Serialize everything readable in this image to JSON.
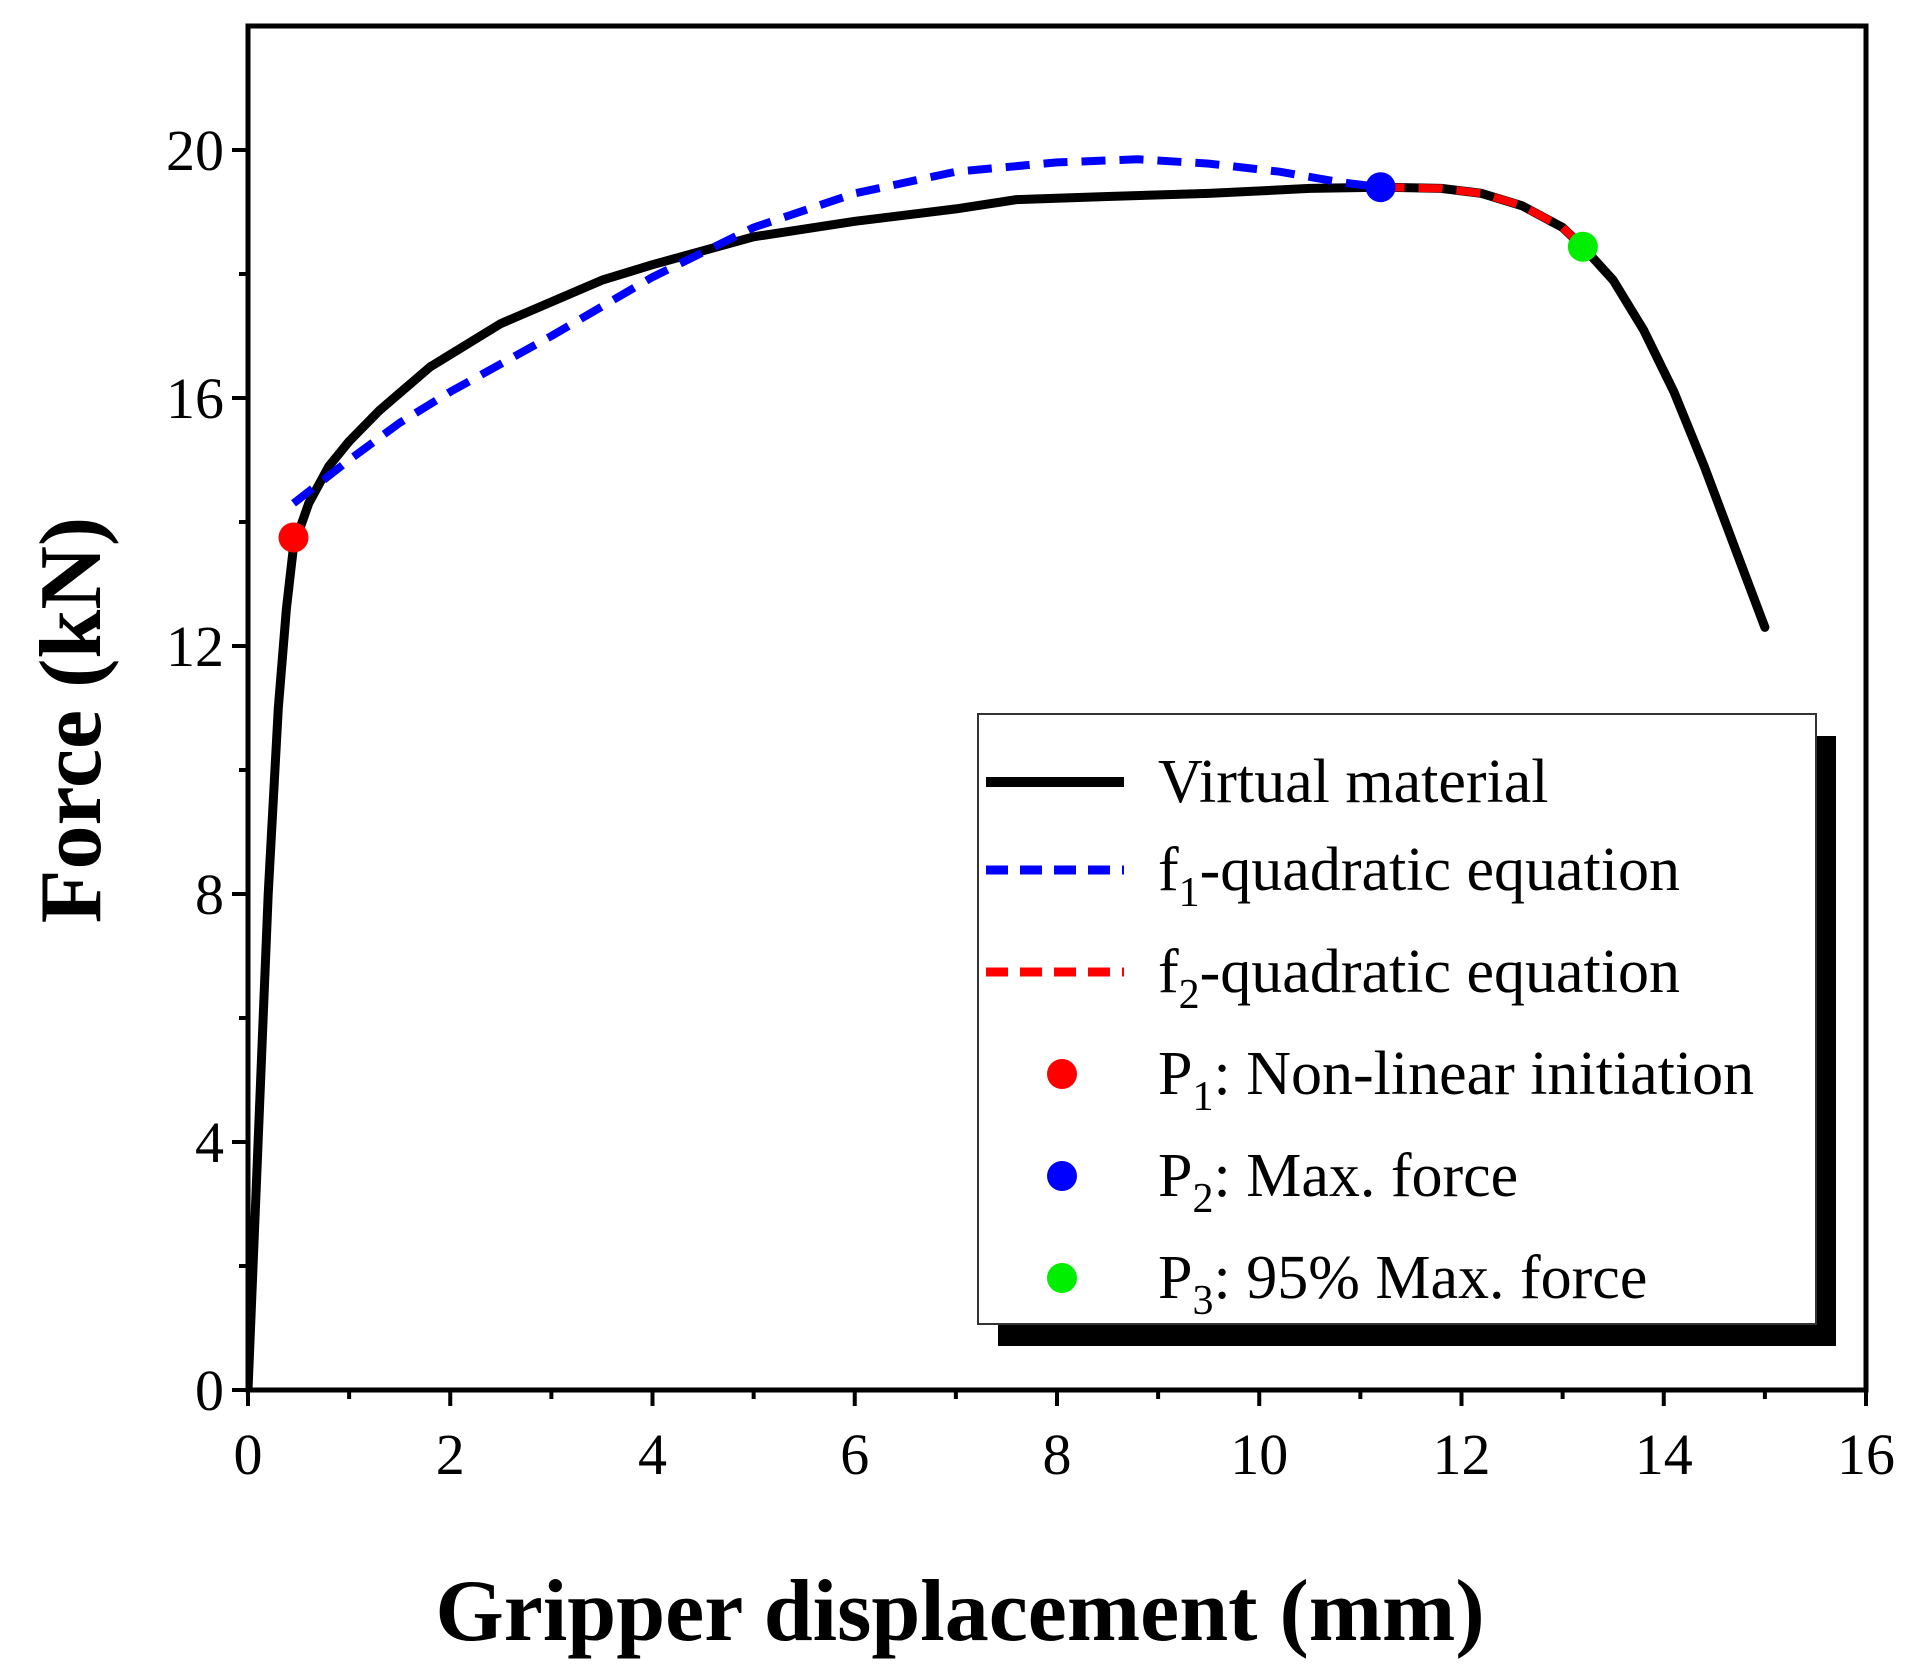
{
  "chart_data": {
    "type": "line",
    "xlabel": "Gripper displacement (mm)",
    "ylabel": "Force (kN)",
    "xlim": [
      0,
      16
    ],
    "ylim": [
      0,
      22
    ],
    "xticks": [
      0,
      2,
      4,
      6,
      8,
      10,
      12,
      14,
      16
    ],
    "yticks": [
      0,
      4,
      8,
      12,
      16,
      20
    ],
    "xtick_labels": [
      "0",
      "2",
      "4",
      "6",
      "8",
      "10",
      "12",
      "14",
      "16"
    ],
    "ytick_labels": [
      "0",
      "4",
      "8",
      "12",
      "16",
      "20"
    ],
    "grid": false,
    "legend_position": "bottom-right",
    "series": [
      {
        "name": "Virtual material",
        "style": "solid",
        "color": "#000000",
        "x": [
          0,
          0.1,
          0.2,
          0.3,
          0.38,
          0.45,
          0.6,
          0.8,
          1.0,
          1.3,
          1.8,
          2.5,
          3.5,
          4.0,
          5.0,
          6.0,
          7.0,
          7.6,
          8.5,
          9.5,
          10.5,
          11.2,
          11.8,
          12.2,
          12.6,
          13.0,
          13.2,
          13.5,
          13.8,
          14.1,
          14.4,
          14.7,
          15.0
        ],
        "y": [
          0,
          4.0,
          8.0,
          11.0,
          12.6,
          13.6,
          14.3,
          14.9,
          15.3,
          15.8,
          16.5,
          17.2,
          17.9,
          18.15,
          18.6,
          18.85,
          19.05,
          19.2,
          19.25,
          19.3,
          19.38,
          19.4,
          19.38,
          19.3,
          19.1,
          18.75,
          18.44,
          17.9,
          17.1,
          16.1,
          14.9,
          13.6,
          12.3
        ]
      },
      {
        "name": "f1-quadratic equation",
        "label_main": "f",
        "label_sub": "1",
        "label_rest": "-quadratic equation",
        "style": "dashed",
        "color": "#0000ff",
        "x": [
          0.45,
          1.0,
          1.5,
          2.0,
          3.0,
          4.0,
          5.0,
          6.0,
          7.0,
          8.0,
          8.8,
          9.5,
          10.2,
          10.8,
          11.2
        ],
        "y": [
          14.3,
          15.0,
          15.6,
          16.1,
          17.0,
          17.95,
          18.75,
          19.3,
          19.65,
          19.8,
          19.85,
          19.78,
          19.65,
          19.48,
          19.4
        ]
      },
      {
        "name": "f2-quadratic equation",
        "label_main": "f",
        "label_sub": "2",
        "label_rest": "-quadratic equation",
        "style": "dashed",
        "color": "#ff0000",
        "x": [
          11.2,
          11.8,
          12.2,
          12.6,
          13.0,
          13.2
        ],
        "y": [
          19.4,
          19.38,
          19.3,
          19.1,
          18.75,
          18.44
        ]
      }
    ],
    "points": [
      {
        "name": "P1: Non-linear initiation",
        "label_main": "P",
        "label_sub": "1",
        "label_rest": ": Non-linear initiation",
        "x": 0.45,
        "y": 13.75,
        "color": "#ff0000"
      },
      {
        "name": "P2: Max. force",
        "label_main": "P",
        "label_sub": "2",
        "label_rest": ": Max. force",
        "x": 11.2,
        "y": 19.4,
        "color": "#0000ff"
      },
      {
        "name": "P3: 95% Max. force",
        "label_main": "P",
        "label_sub": "3",
        "label_rest": ": 95% Max. force",
        "x": 13.2,
        "y": 18.44,
        "color": "#00ee00"
      }
    ]
  }
}
